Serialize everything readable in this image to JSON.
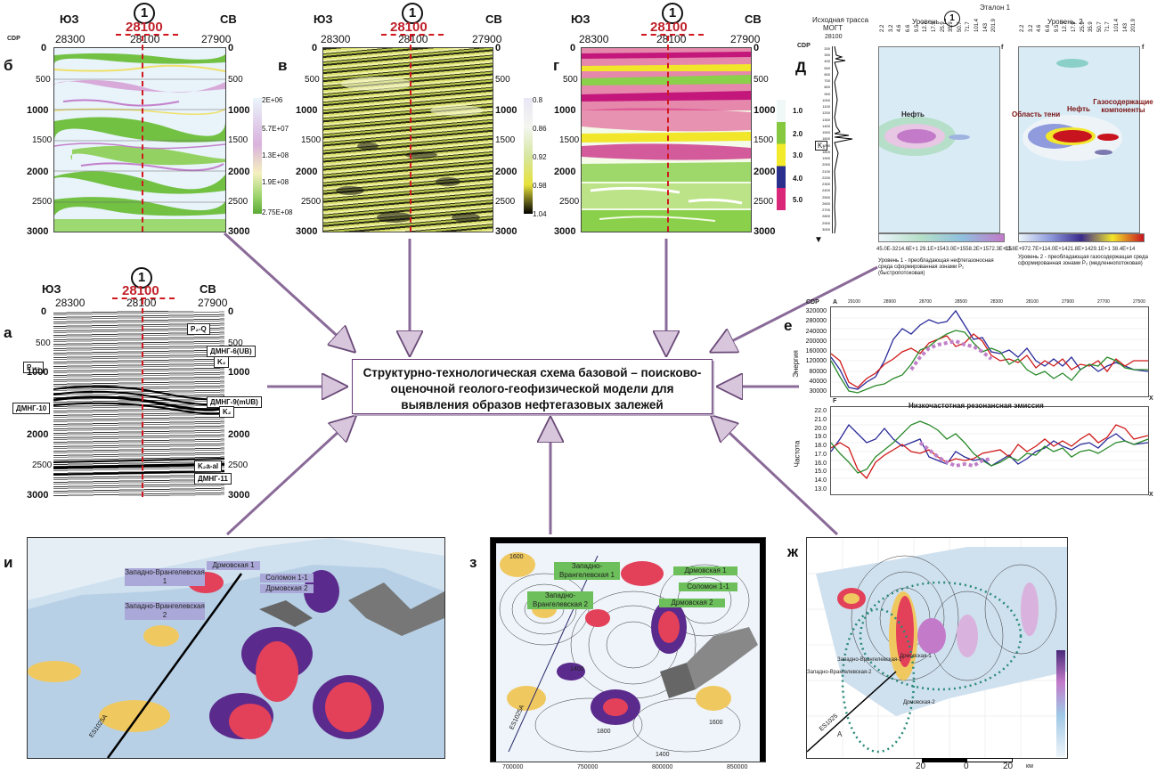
{
  "central": {
    "lines": [
      "Структурно-технологическая схема базовой – поисково-",
      "оценочной геолого-геофизической модели для",
      "выявления образов нефтегазовых залежей"
    ]
  },
  "panels": {
    "a": "а",
    "b": "б",
    "v": "в",
    "g": "г",
    "d": "Д",
    "e": "е",
    "zh": "ж",
    "z": "з",
    "i": "и"
  },
  "section": {
    "sw": "ЮЗ",
    "ne": "СВ",
    "cdp": "CDP",
    "well": "28100",
    "well_num": "1",
    "cdp_left": "28300",
    "cdp_mid": "28100",
    "cdp_right": "27900",
    "depths": [
      "0",
      "500",
      "1000",
      "1500",
      "2000",
      "2500",
      "3000"
    ]
  },
  "panel_a": {
    "labels": {
      "p2q": "P₂-Q",
      "dmng6": "ДМНГ-6(UB)",
      "k2": "K₂",
      "p12": "P₁-₂",
      "dmng9": "ДМНГ-9(mUB)",
      "dmng10": "ДМНГ-10",
      "k2b": "K₂",
      "k2aal": "K₂a-al",
      "dmng11": "ДМНГ-11"
    }
  },
  "panel_b": {
    "cbar": [
      "2E+06",
      "5.7E+07",
      "1.3E+08",
      "1.9E+08",
      "2.75E+08"
    ]
  },
  "panel_v": {
    "cbar": [
      "0.8",
      "0.86",
      "0.92",
      "0.98",
      "1.04"
    ]
  },
  "panel_g": {
    "cbar": [
      "1.0",
      "2.0",
      "3.0",
      "4.0",
      "5.0"
    ]
  },
  "panel_d": {
    "etalon": "Эталон 1",
    "etalon_num": "1",
    "trace_title1": "Исходная трасса",
    "trace_title2": "МОГТ",
    "trace_well": "28100",
    "level1": "Уровень. 1",
    "level2": "Уровень. 2",
    "cdp": "CDP",
    "f": "f",
    "oil": "Нефть",
    "oil2": "Нефть",
    "shadow": "Область тени",
    "gas": "Газосодержащие компоненты",
    "k2": "K₂",
    "freq_ticks": [
      "2.2",
      "3.2",
      "4.6",
      "6.6",
      "9.5",
      "12.7",
      "17.9",
      "25.9",
      "35.9",
      "50.7",
      "71.7",
      "101.4",
      "143",
      "201.9"
    ],
    "cb1": "45.0E-3214.6E+1 29.1E+1543.0E+1558.2E+1572.3E+15",
    "cb2": "13.8E+972.7E+114.0E+1421.8E+1429.1E+1 38.4E+14",
    "note1": "Уровень 1 - преобладающая нефтегазоносная среда сформированная зонами P₁ (быстропотоковая)",
    "note2": "Уровень 2 - преобладающая газосодержащая среда сформированная зонами P₂ (медленнопотоковая)",
    "trace_ticks": [
      "200",
      "300",
      "400",
      "500",
      "600",
      "700",
      "800",
      "900",
      "1000",
      "1100",
      "1200",
      "1300",
      "1400",
      "1500",
      "1600",
      "1700",
      "1800",
      "1900",
      "2000",
      "2100",
      "2200",
      "2300",
      "2400",
      "2500",
      "2600",
      "2700",
      "2800",
      "2900",
      "3000"
    ]
  },
  "panel_e": {
    "title_bottom": "Низкочастотная резонансная эмиссия",
    "ylabel_top": "Энергия",
    "ylabel_bottom": "Частота",
    "cdp": "CDP",
    "a": "A",
    "f": "F",
    "x": "X",
    "top_ticks": [
      "320000",
      "280000",
      "240000",
      "200000",
      "160000",
      "120000",
      "80000",
      "40000",
      "30000"
    ],
    "bottom_ticks": [
      "22.0",
      "21.0",
      "20.0",
      "19.0",
      "18.0",
      "17.0",
      "16.0",
      "15.0",
      "14.0",
      "13.0"
    ],
    "cdp_ticks": [
      "29100",
      "28900",
      "28700",
      "28500",
      "28300",
      "28100",
      "27900",
      "27700",
      "27500"
    ]
  },
  "panel_zh": {
    "scale": [
      "20",
      "0",
      "20"
    ],
    "km": "км",
    "line": "ES1025",
    "a": "A",
    "w1": "Западно-Врангелевская-1",
    "w2": "Западно-Врангелевская-2",
    "w3": "Дрмовская-1",
    "w4": "Дрмовская-2"
  },
  "panel_z": {
    "boxes": [
      "Западно-Врангелевская 1",
      "Западно-Врангелевская 2",
      "Дрмовская 1",
      "Соломон 1-1",
      "Дрмовская 2"
    ],
    "x_ticks": [
      "700000",
      "750000",
      "800000",
      "850000"
    ],
    "contours": [
      "1600",
      "1400",
      "1800",
      "1600",
      "1400"
    ],
    "line": "ES1025A"
  },
  "panel_i": {
    "boxes": [
      "Западно-Врангелевская 1",
      "Западно-Врангелевская 2",
      "Дрмовская 1",
      "Соломон 1-1",
      "Дрмовская 2"
    ],
    "line": "ES1025A"
  }
}
